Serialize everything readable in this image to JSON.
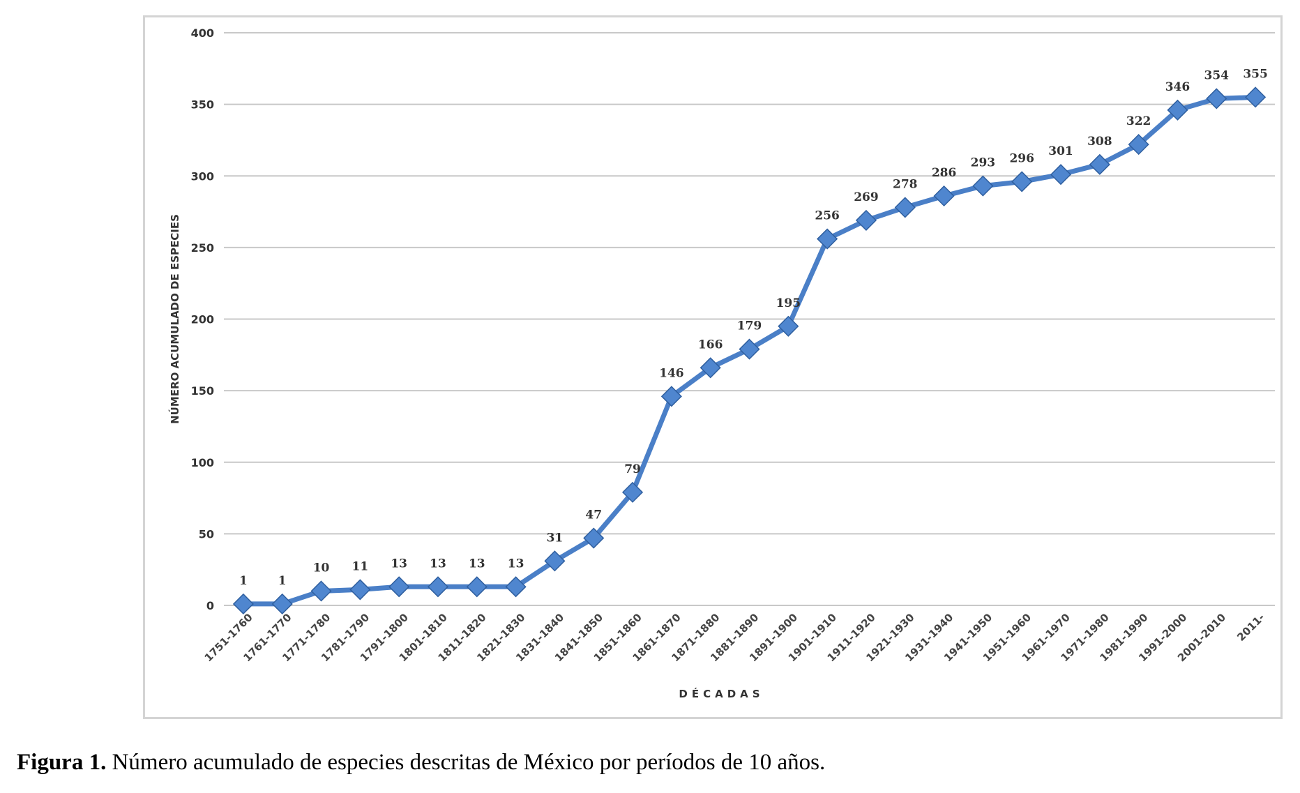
{
  "figure": {
    "caption_label": "Figura 1.",
    "caption_text": " Número acumulado de especies descritas de México por períodos de 10 años."
  },
  "chart_data": {
    "type": "line",
    "xlabel": "DÉCADAS",
    "ylabel": "NÚMERO ACUMULADO DE ESPECIES",
    "ylim": [
      0,
      400
    ],
    "yticks": [
      0,
      50,
      100,
      150,
      200,
      250,
      300,
      350,
      400
    ],
    "grid": true,
    "legend": "none",
    "categories": [
      "1751-1760",
      "1761-1770",
      "1771-1780",
      "1781-1790",
      "1791-1800",
      "1801-1810",
      "1811-1820",
      "1821-1830",
      "1831-1840",
      "1841-1850",
      "1851-1860",
      "1861-1870",
      "1871-1880",
      "1881-1890",
      "1891-1900",
      "1901-1910",
      "1911-1920",
      "1921-1930",
      "1931-1940",
      "1941-1950",
      "1951-1960",
      "1961-1970",
      "1971-1980",
      "1981-1990",
      "1991-2000",
      "2001-2010",
      "2011-"
    ],
    "values": [
      1,
      1,
      10,
      11,
      13,
      13,
      13,
      13,
      31,
      47,
      79,
      146,
      166,
      179,
      195,
      256,
      269,
      278,
      286,
      293,
      296,
      301,
      308,
      322,
      346,
      354,
      355
    ],
    "colors": {
      "line": "#4a7fc7",
      "marker": "#4f86cf",
      "grid": "#c8c8c8"
    }
  }
}
